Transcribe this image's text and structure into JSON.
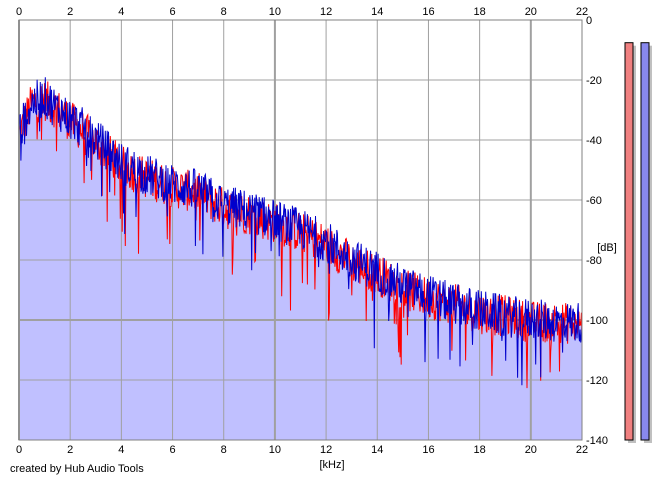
{
  "credit": "created by Hub Audio Tools",
  "chart_data": {
    "type": "area",
    "xlabel": "[kHz]",
    "ylabel": "[dB]",
    "xlim": [
      0,
      22
    ],
    "ylim": [
      -140,
      0
    ],
    "x_ticks": [
      0,
      2,
      4,
      6,
      8,
      10,
      12,
      14,
      16,
      18,
      20,
      22
    ],
    "y_ticks": [
      0,
      -20,
      -40,
      -60,
      -80,
      -100,
      -120,
      -140
    ],
    "y_tick_labels": [
      "0",
      "-20",
      "-40",
      "-60",
      "-80",
      "-100",
      "-120",
      "-140"
    ],
    "grid": true,
    "colors": {
      "left_channel": "#ff0000",
      "right_channel": "#0000cc",
      "fill": "#c0c0ff",
      "meter_left": "#f08080",
      "meter_right": "#8888ee"
    },
    "series": [
      {
        "x": [
          0,
          0.5,
          1,
          1.5,
          2,
          3,
          4,
          5,
          6,
          7,
          8,
          9,
          10,
          11,
          12,
          13,
          14,
          15,
          16,
          17,
          18,
          19,
          20,
          21,
          22
        ],
        "values": [
          -38,
          -27,
          -26,
          -29,
          -33,
          -40,
          -48,
          -52,
          -55,
          -57,
          -62,
          -64,
          -67,
          -70,
          -74,
          -80,
          -84,
          -89,
          -92,
          -94,
          -97,
          -98,
          -100,
          -100,
          -101
        ]
      },
      {
        "x": [
          0,
          0.5,
          1,
          1.5,
          2,
          3,
          4,
          5,
          6,
          7,
          8,
          9,
          10,
          11,
          12,
          13,
          14,
          15,
          16,
          17,
          18,
          19,
          20,
          21,
          22
        ],
        "values": [
          -37,
          -27,
          -25,
          -29,
          -32,
          -39,
          -47,
          -51,
          -54,
          -56,
          -61,
          -63,
          -66,
          -69,
          -73,
          -79,
          -83,
          -88,
          -91,
          -94,
          -96,
          -98,
          -99,
          -100,
          -100
        ]
      }
    ],
    "level_meters": [
      {
        "channel": "left",
        "value_db": -3
      },
      {
        "channel": "right",
        "value_db": -3
      }
    ]
  }
}
